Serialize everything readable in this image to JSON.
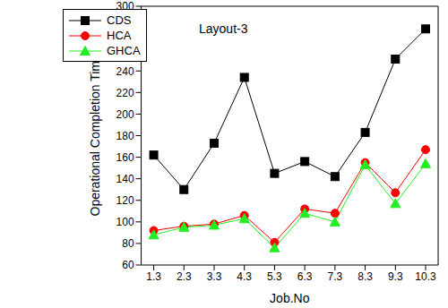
{
  "chart_data": {
    "type": "line",
    "annotations": [
      "Layout-3"
    ],
    "x_label": "Job.No",
    "y_label": "Operational Completion Time",
    "categories": [
      "1.3",
      "2.3",
      "3.3",
      "4.3",
      "5.3",
      "6.3",
      "7.3",
      "8.3",
      "9.3",
      "10.3"
    ],
    "series": [
      {
        "name": "CDS",
        "color": "#000000",
        "marker": "square",
        "line_style": "solid",
        "values": [
          162,
          130,
          173,
          234,
          145,
          156,
          142,
          183,
          251,
          279
        ]
      },
      {
        "name": "HCA",
        "color": "#ff0000",
        "marker": "circle",
        "line_style": "solid",
        "values": [
          92,
          96,
          98,
          106,
          81,
          112,
          108,
          155,
          127,
          167
        ]
      },
      {
        "name": "GHCA",
        "color": "#22ee22",
        "marker": "triangle",
        "line_style": "solid",
        "values": [
          88,
          95,
          97,
          103,
          76,
          108,
          100,
          153,
          117,
          154
        ]
      }
    ],
    "ylim": [
      60,
      300
    ],
    "yticks": [
      60,
      80,
      100,
      120,
      140,
      160,
      180,
      200,
      220,
      240,
      260,
      280,
      300
    ],
    "grid": false,
    "legend": "top-left"
  }
}
